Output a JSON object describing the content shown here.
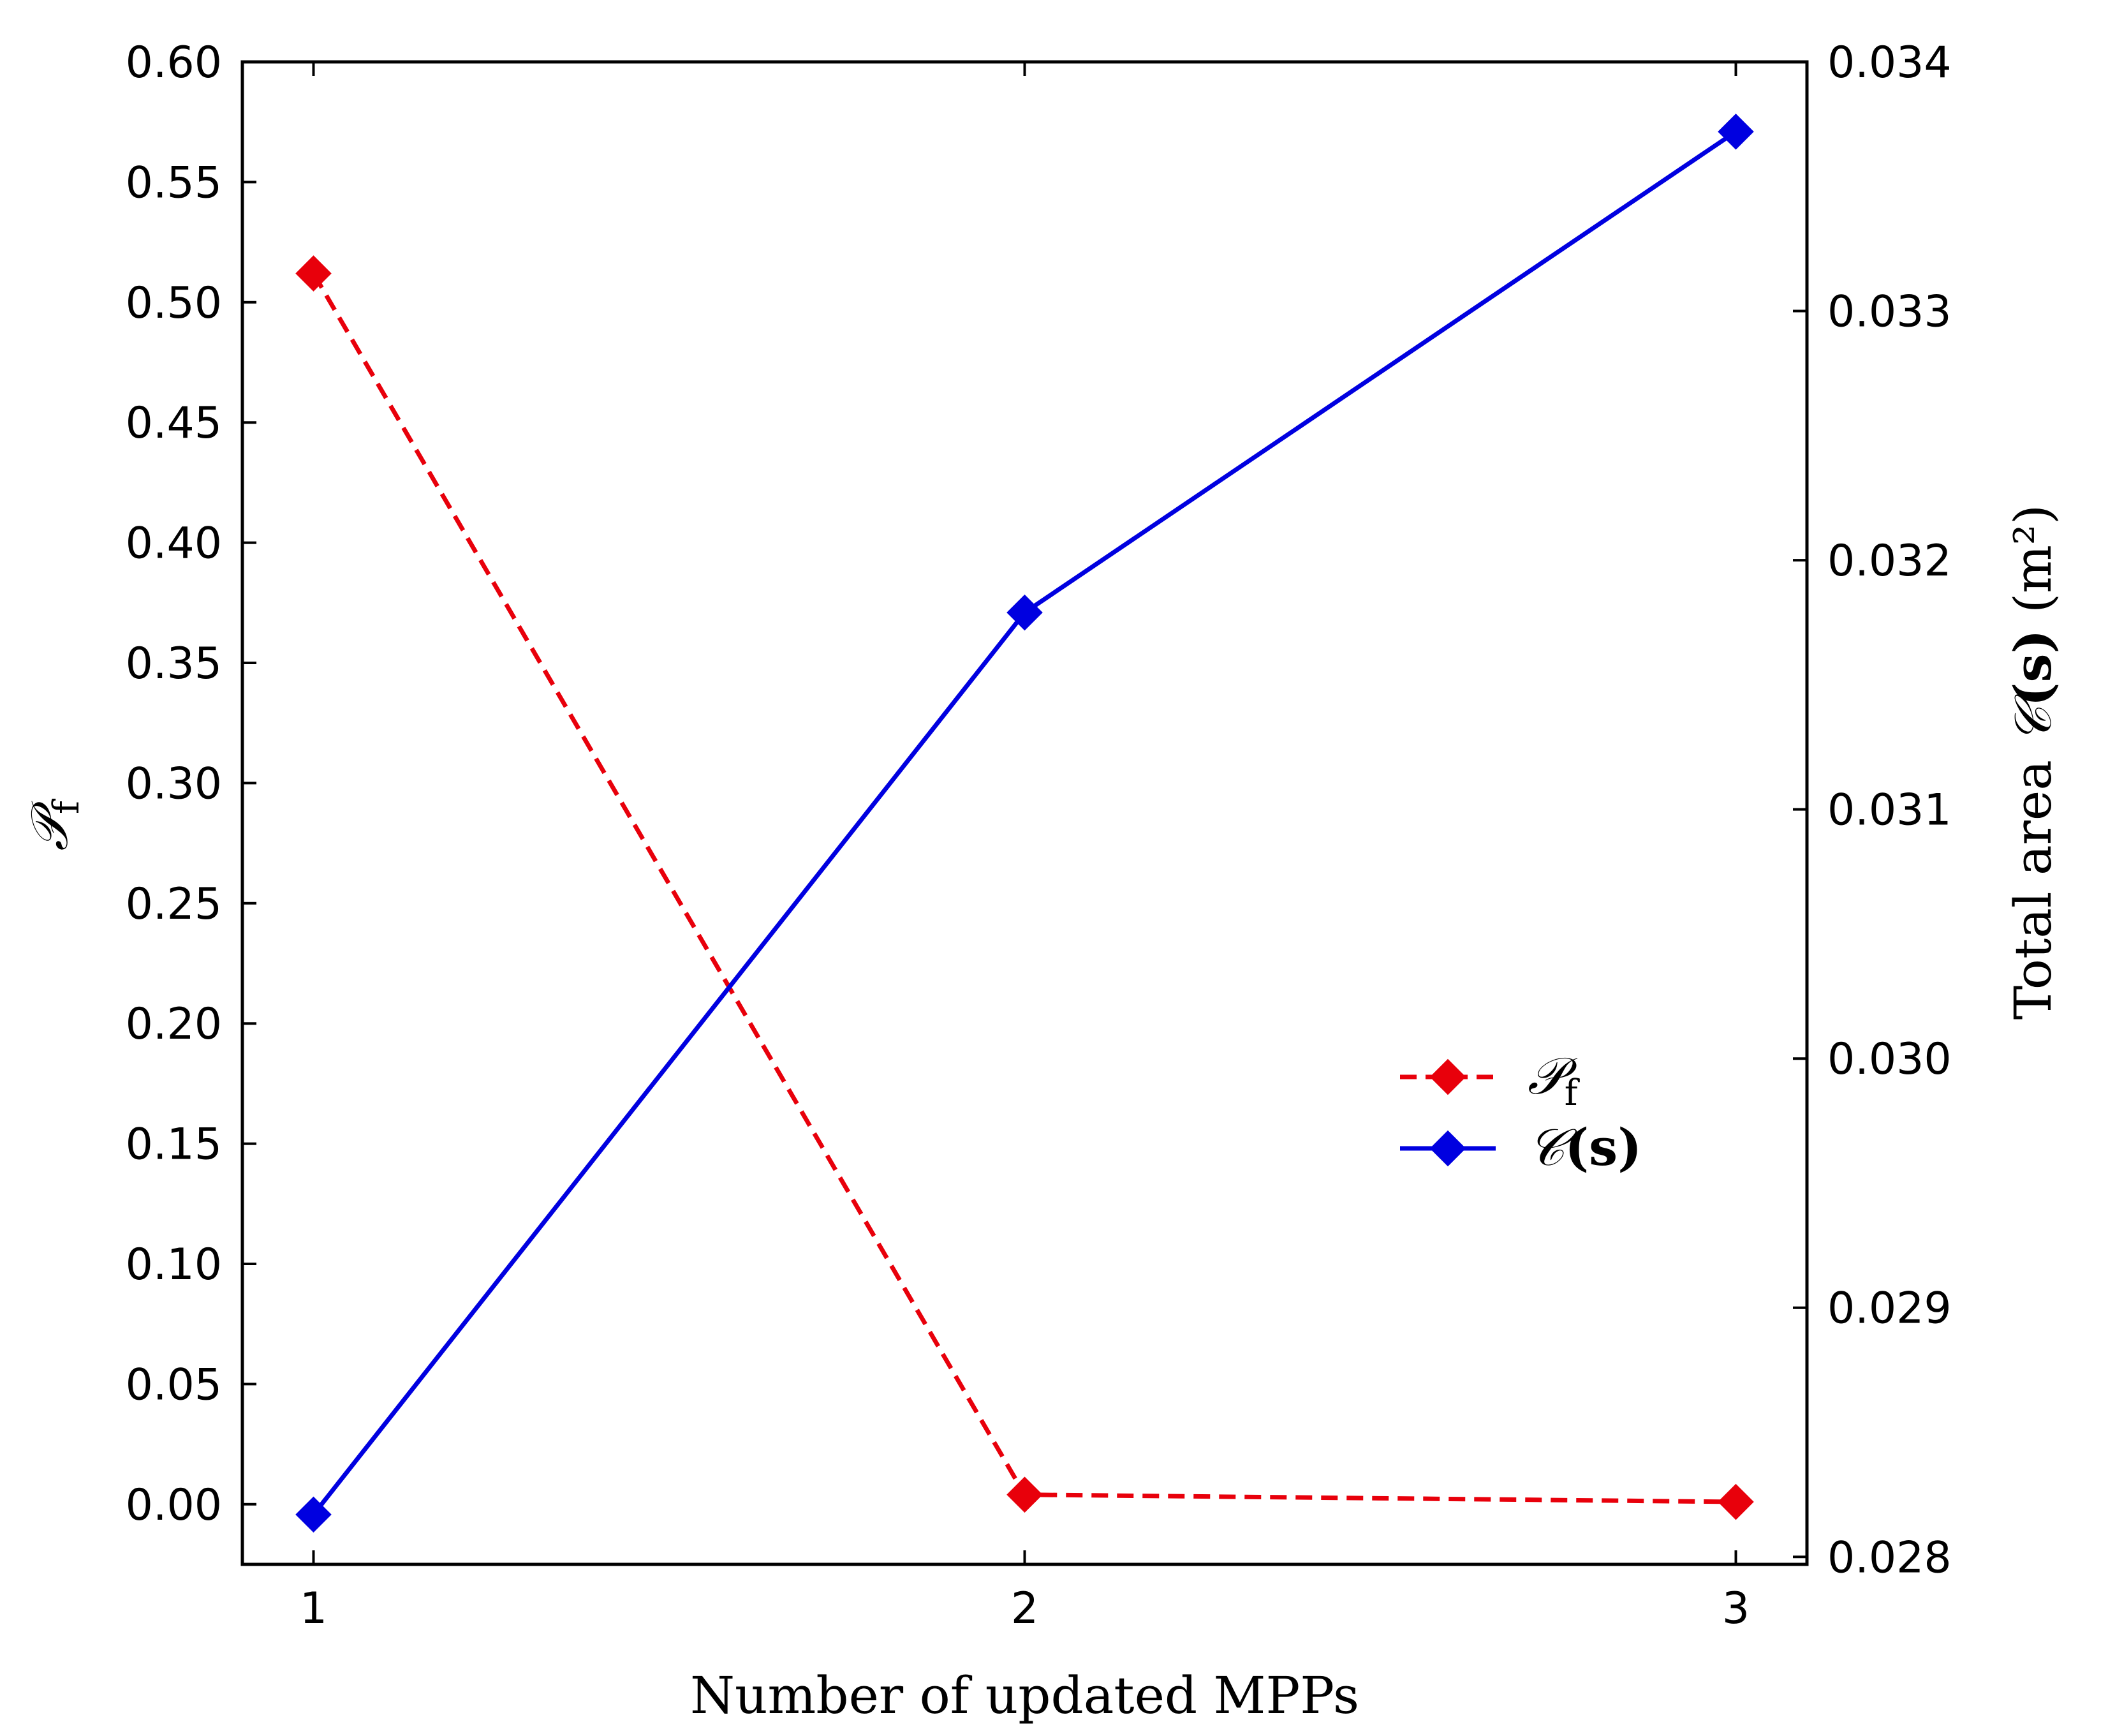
{
  "chart_data": {
    "type": "line",
    "x": [
      1,
      2,
      3
    ],
    "xticks": [
      "1",
      "2",
      "3"
    ],
    "xlim": [
      0.9,
      3.1
    ],
    "xlabel": "Number of updated MPPs",
    "y_left": {
      "label": "𝒫f",
      "label_main": "𝒫",
      "label_sub": "f",
      "ylim": [
        -0.025,
        0.6
      ],
      "ticks": [
        "0.00",
        "0.05",
        "0.10",
        "0.15",
        "0.20",
        "0.25",
        "0.30",
        "0.35",
        "0.40",
        "0.45",
        "0.50",
        "0.55",
        "0.60"
      ]
    },
    "y_right": {
      "label": "Total area 𝒞(s) (m²)",
      "label_prefix": "Total area ",
      "label_C": "𝒞",
      "label_s": "(s)",
      "label_unit": " (m²)",
      "ylim": [
        0.02797,
        0.034
      ],
      "ticks": [
        "0.028",
        "0.029",
        "0.030",
        "0.031",
        "0.032",
        "0.033",
        "0.034"
      ]
    },
    "series": [
      {
        "name": "𝒫f",
        "name_main": "𝒫",
        "name_sub": "f",
        "axis": "left",
        "values": [
          0.512,
          0.004,
          0.001
        ],
        "color": "#e8000b",
        "line_style": "dashed",
        "marker": "diamond"
      },
      {
        "name": "𝒞(s)",
        "name_main": "𝒞",
        "name_rest": "(s)",
        "axis": "right",
        "values": [
          0.02817,
          0.03179,
          0.03372
        ],
        "color": "#0000e0",
        "line_style": "solid",
        "marker": "diamond"
      }
    ],
    "legend_position": "center-right",
    "grid": false
  }
}
